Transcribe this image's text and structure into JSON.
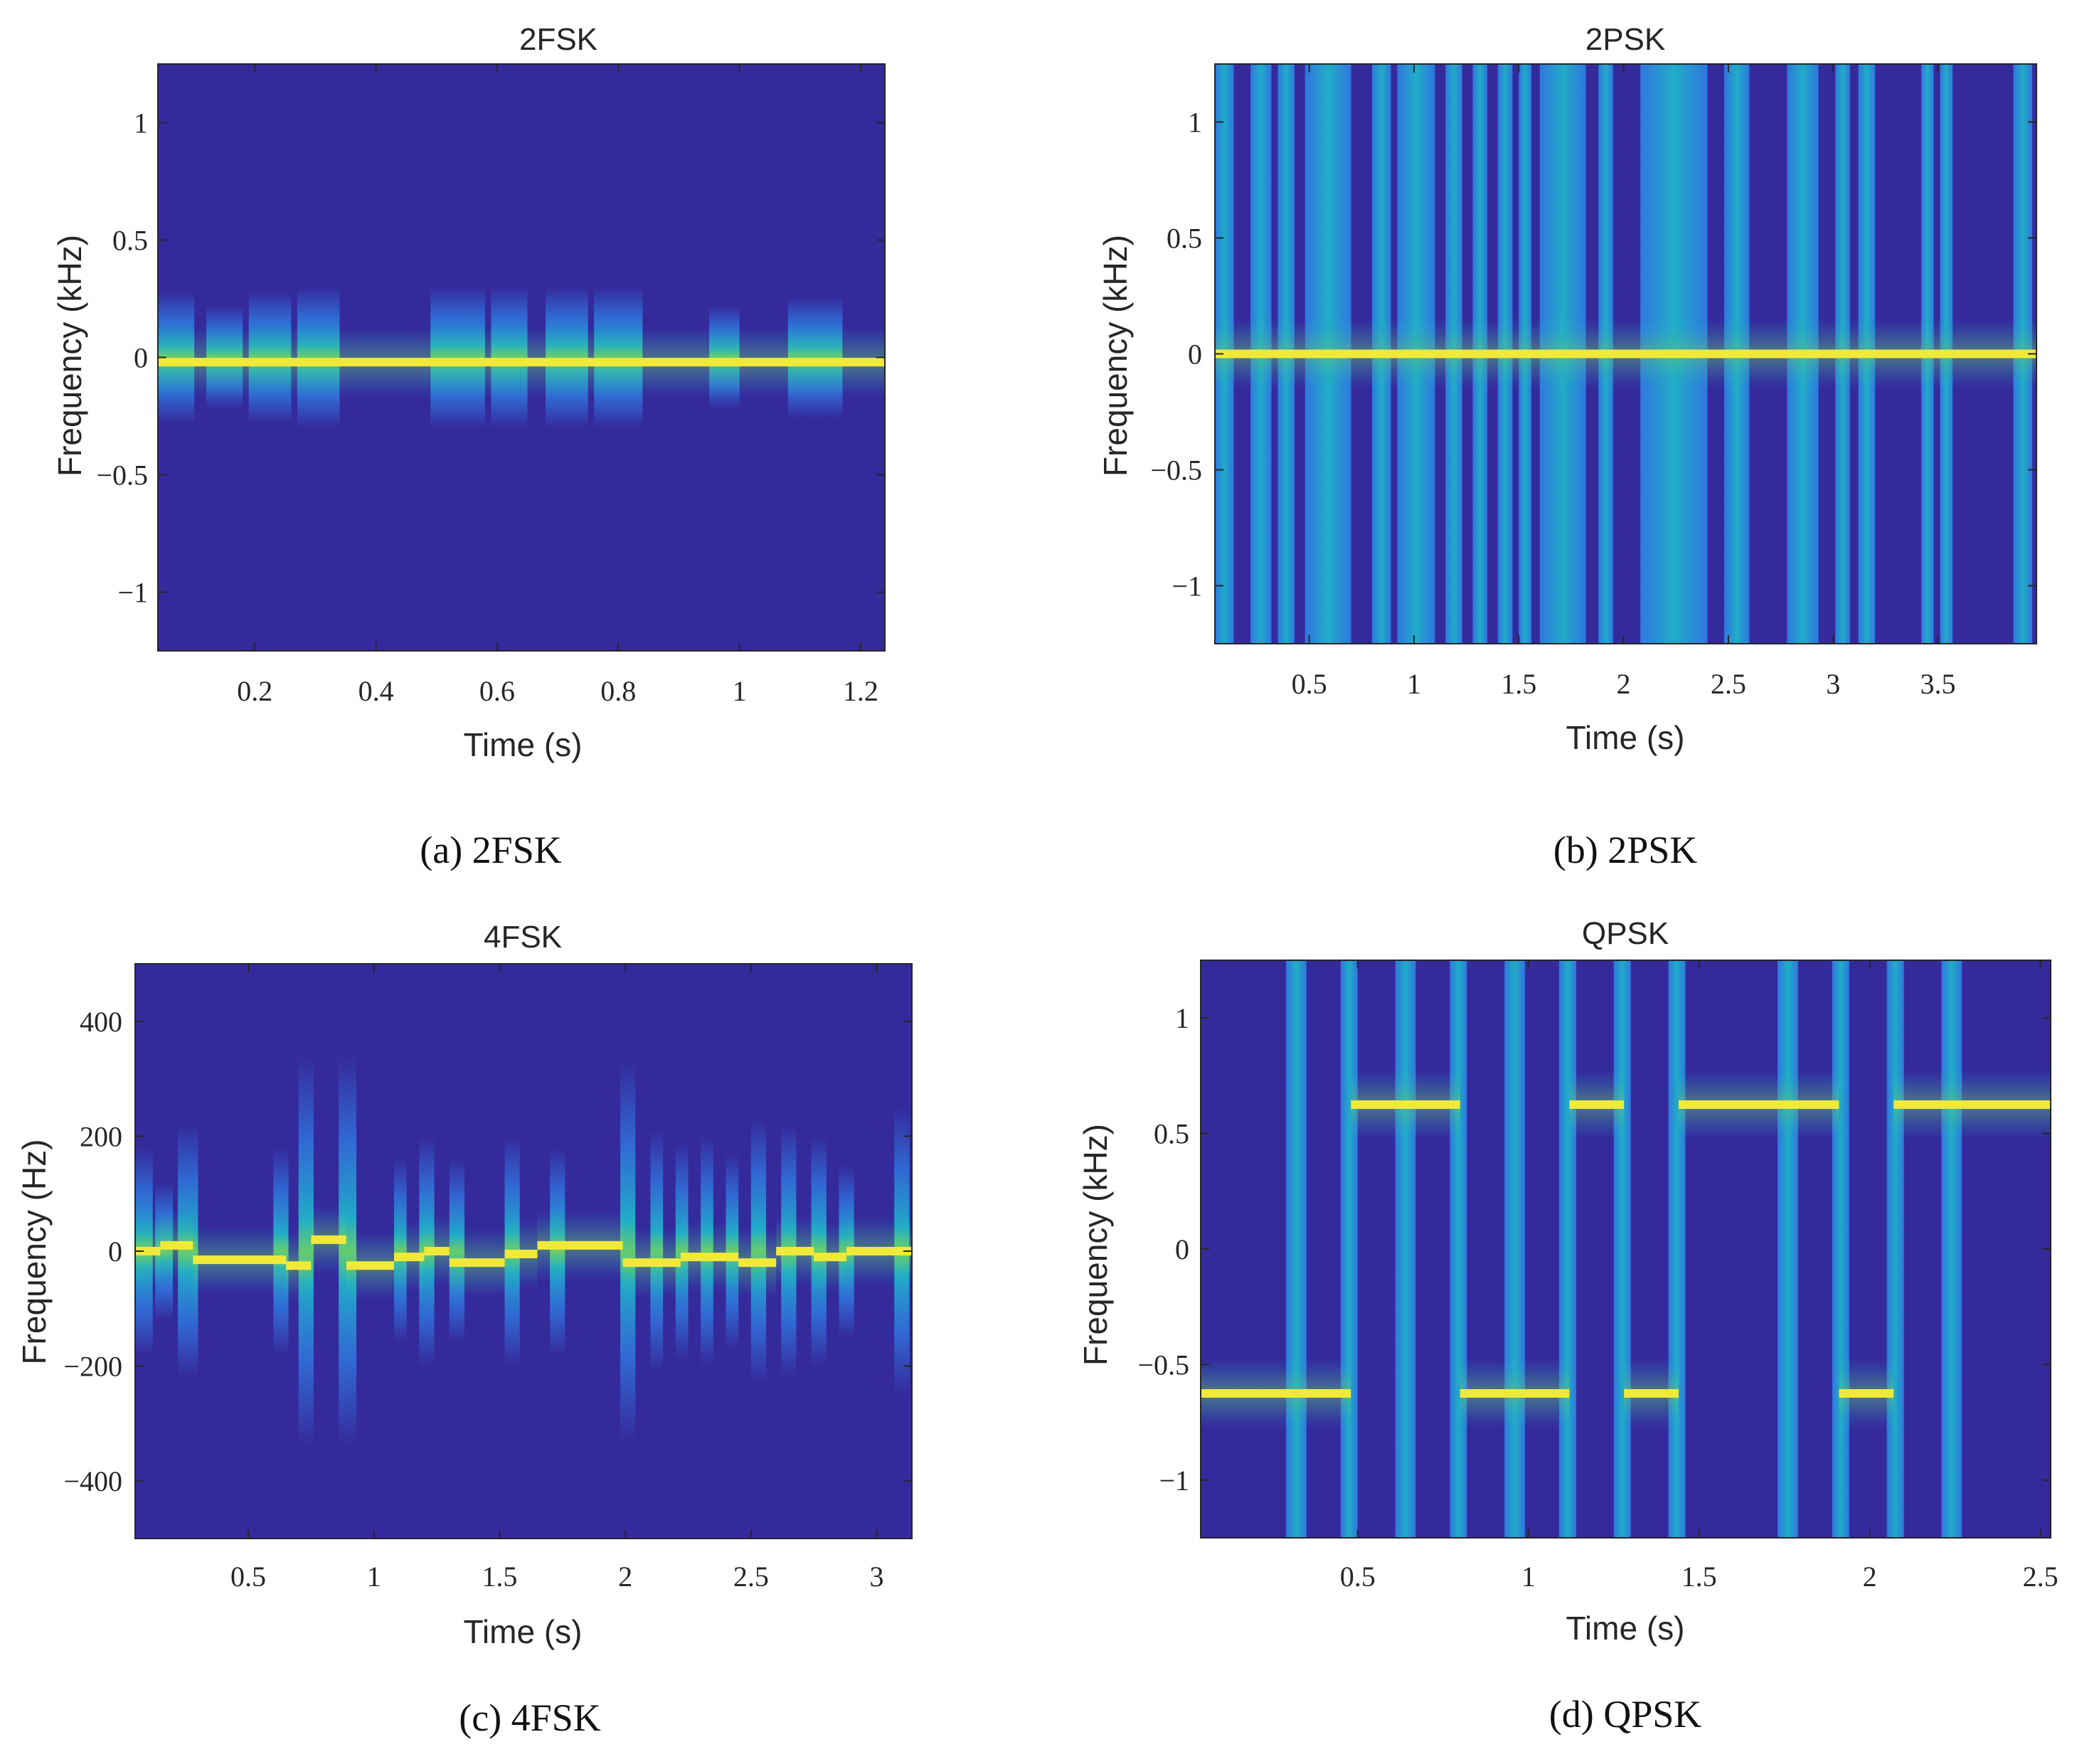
{
  "colors": {
    "background": "#352a9c",
    "energy_low": "#2f7fe6",
    "energy_mid": "#1fb4c9",
    "energy_high": "#6ecf63",
    "peak": "#f1e93a"
  },
  "chart_data": [
    {
      "id": "a",
      "type": "heatmap",
      "title": "2FSK",
      "caption": "(a)  2FSK",
      "xlabel": "Time (s)",
      "ylabel": "Frequency (kHz)",
      "xlim": [
        0.04,
        1.24
      ],
      "ylim": [
        -1.25,
        1.25
      ],
      "xticks": [
        0.2,
        0.4,
        0.6,
        0.8,
        1,
        1.2
      ],
      "xtick_labels": [
        "0.2",
        "0.4",
        "0.6",
        "0.8",
        "1",
        "1.2"
      ],
      "yticks": [
        1,
        0.5,
        0,
        -0.5,
        -1
      ],
      "ytick_labels": [
        "1",
        "0.5",
        "0",
        "−0.5",
        "−1"
      ],
      "bursts": [
        {
          "t0": 0.04,
          "t1": 0.1,
          "f": 0,
          "spread": 0.28
        },
        {
          "t0": 0.12,
          "t1": 0.18,
          "f": 0,
          "spread": 0.22
        },
        {
          "t0": 0.19,
          "t1": 0.26,
          "f": 0,
          "spread": 0.28
        },
        {
          "t0": 0.27,
          "t1": 0.34,
          "f": 0,
          "spread": 0.3
        },
        {
          "t0": 0.49,
          "t1": 0.58,
          "f": 0,
          "spread": 0.3
        },
        {
          "t0": 0.59,
          "t1": 0.65,
          "f": 0,
          "spread": 0.3
        },
        {
          "t0": 0.68,
          "t1": 0.75,
          "f": 0,
          "spread": 0.3
        },
        {
          "t0": 0.76,
          "t1": 0.84,
          "f": 0,
          "spread": 0.3
        },
        {
          "t0": 0.95,
          "t1": 1.0,
          "f": 0,
          "spread": 0.22
        },
        {
          "t0": 1.08,
          "t1": 1.17,
          "f": 0,
          "spread": 0.26
        }
      ],
      "ridge": [
        {
          "t0": 0.04,
          "t1": 1.24,
          "f": -0.02
        }
      ]
    },
    {
      "id": "b",
      "type": "heatmap",
      "title": "2PSK",
      "caption": "(b)  2PSK",
      "xlabel": "Time (s)",
      "ylabel": "Frequency (kHz)",
      "xlim": [
        0.05,
        3.97
      ],
      "ylim": [
        -1.25,
        1.25
      ],
      "xticks": [
        0.5,
        1,
        1.5,
        2,
        2.5,
        3,
        3.5
      ],
      "xtick_labels": [
        "0.5",
        "1",
        "1.5",
        "2",
        "2.5",
        "3",
        "3.5"
      ],
      "yticks": [
        1,
        0.5,
        0,
        -0.5,
        -1
      ],
      "ytick_labels": [
        "1",
        "0.5",
        "0",
        "−0.5",
        "−1"
      ],
      "bands": [
        {
          "t0": 0.05,
          "t1": 0.14
        },
        {
          "t0": 0.22,
          "t1": 0.32
        },
        {
          "t0": 0.35,
          "t1": 0.43
        },
        {
          "t0": 0.48,
          "t1": 0.7
        },
        {
          "t0": 0.8,
          "t1": 0.89
        },
        {
          "t0": 0.92,
          "t1": 1.1
        },
        {
          "t0": 1.15,
          "t1": 1.23
        },
        {
          "t0": 1.28,
          "t1": 1.35
        },
        {
          "t0": 1.4,
          "t1": 1.47
        },
        {
          "t0": 1.5,
          "t1": 1.56
        },
        {
          "t0": 1.6,
          "t1": 1.82
        },
        {
          "t0": 1.88,
          "t1": 1.95
        },
        {
          "t0": 2.08,
          "t1": 2.4
        },
        {
          "t0": 2.48,
          "t1": 2.6
        },
        {
          "t0": 2.78,
          "t1": 2.93
        },
        {
          "t0": 3.01,
          "t1": 3.08
        },
        {
          "t0": 3.12,
          "t1": 3.2
        },
        {
          "t0": 3.42,
          "t1": 3.48
        },
        {
          "t0": 3.51,
          "t1": 3.57
        },
        {
          "t0": 3.86,
          "t1": 3.95
        }
      ],
      "ridge": [
        {
          "t0": 0.05,
          "t1": 3.97,
          "f": 0
        }
      ]
    },
    {
      "id": "c",
      "type": "heatmap",
      "title": "4FSK",
      "caption": "(c)  4FSK",
      "xlabel": "Time (s)",
      "ylabel": "Frequency (Hz)",
      "xlim": [
        0.05,
        3.14
      ],
      "ylim": [
        -500,
        500
      ],
      "xticks": [
        0.5,
        1,
        1.5,
        2,
        2.5,
        3
      ],
      "xtick_labels": [
        "0.5",
        "1",
        "1.5",
        "2",
        "2.5",
        "3"
      ],
      "yticks": [
        400,
        200,
        0,
        -200,
        -400
      ],
      "ytick_labels": [
        "400",
        "200",
        "0",
        "−200",
        "−400"
      ],
      "bursts": [
        {
          "t0": 0.05,
          "t1": 0.12,
          "f": 0,
          "spread": 180
        },
        {
          "t0": 0.13,
          "t1": 0.2,
          "f": 0,
          "spread": 120
        },
        {
          "t0": 0.22,
          "t1": 0.3,
          "f": 0,
          "spread": 220
        },
        {
          "t0": 0.6,
          "t1": 0.66,
          "f": 0,
          "spread": 180
        },
        {
          "t0": 0.7,
          "t1": 0.76,
          "f": 0,
          "spread": 340
        },
        {
          "t0": 0.86,
          "t1": 0.93,
          "f": 0,
          "spread": 340
        },
        {
          "t0": 1.08,
          "t1": 1.13,
          "f": 0,
          "spread": 160
        },
        {
          "t0": 1.18,
          "t1": 1.24,
          "f": 0,
          "spread": 200
        },
        {
          "t0": 1.3,
          "t1": 1.36,
          "f": 0,
          "spread": 160
        },
        {
          "t0": 1.52,
          "t1": 1.58,
          "f": 0,
          "spread": 200
        },
        {
          "t0": 1.7,
          "t1": 1.76,
          "f": 0,
          "spread": 180
        },
        {
          "t0": 1.98,
          "t1": 2.04,
          "f": 0,
          "spread": 330
        },
        {
          "t0": 2.1,
          "t1": 2.15,
          "f": 0,
          "spread": 210
        },
        {
          "t0": 2.2,
          "t1": 2.25,
          "f": 0,
          "spread": 190
        },
        {
          "t0": 2.3,
          "t1": 2.35,
          "f": 0,
          "spread": 200
        },
        {
          "t0": 2.4,
          "t1": 2.45,
          "f": 0,
          "spread": 170
        },
        {
          "t0": 2.5,
          "t1": 2.56,
          "f": 0,
          "spread": 230
        },
        {
          "t0": 2.62,
          "t1": 2.68,
          "f": 0,
          "spread": 220
        },
        {
          "t0": 2.74,
          "t1": 2.8,
          "f": 0,
          "spread": 200
        },
        {
          "t0": 2.85,
          "t1": 2.91,
          "f": 0,
          "spread": 150
        },
        {
          "t0": 3.07,
          "t1": 3.13,
          "f": 0,
          "spread": 250
        }
      ],
      "ridge": [
        {
          "t0": 0.05,
          "t1": 0.15,
          "f": 0
        },
        {
          "t0": 0.15,
          "t1": 0.28,
          "f": 10
        },
        {
          "t0": 0.28,
          "t1": 0.65,
          "f": -15
        },
        {
          "t0": 0.65,
          "t1": 0.75,
          "f": -25
        },
        {
          "t0": 0.75,
          "t1": 0.89,
          "f": 20
        },
        {
          "t0": 0.89,
          "t1": 1.08,
          "f": -25
        },
        {
          "t0": 1.08,
          "t1": 1.2,
          "f": -10
        },
        {
          "t0": 1.2,
          "t1": 1.3,
          "f": 0
        },
        {
          "t0": 1.3,
          "t1": 1.52,
          "f": -20
        },
        {
          "t0": 1.52,
          "t1": 1.65,
          "f": -5
        },
        {
          "t0": 1.65,
          "t1": 1.99,
          "f": 10
        },
        {
          "t0": 1.99,
          "t1": 2.22,
          "f": -20
        },
        {
          "t0": 2.22,
          "t1": 2.45,
          "f": -10
        },
        {
          "t0": 2.45,
          "t1": 2.6,
          "f": -20
        },
        {
          "t0": 2.6,
          "t1": 2.75,
          "f": 0
        },
        {
          "t0": 2.75,
          "t1": 2.88,
          "f": -10
        },
        {
          "t0": 2.88,
          "t1": 3.14,
          "f": 0
        }
      ]
    },
    {
      "id": "d",
      "type": "heatmap",
      "title": "QPSK",
      "caption": "(d)  QPSK",
      "xlabel": "Time (s)",
      "ylabel": "Frequency (kHz)",
      "xlim": [
        0.04,
        2.53
      ],
      "ylim": [
        -1.25,
        1.25
      ],
      "xticks": [
        0.5,
        1,
        1.5,
        2,
        2.5
      ],
      "xtick_labels": [
        "0.5",
        "1",
        "1.5",
        "2",
        "2.5"
      ],
      "yticks": [
        1,
        0.5,
        0,
        -0.5,
        -1
      ],
      "ytick_labels": [
        "1",
        "0.5",
        "0",
        "−0.5",
        "−1"
      ],
      "bands": [
        {
          "t0": 0.29,
          "t1": 0.35
        },
        {
          "t0": 0.45,
          "t1": 0.5
        },
        {
          "t0": 0.61,
          "t1": 0.67
        },
        {
          "t0": 0.77,
          "t1": 0.82
        },
        {
          "t0": 0.93,
          "t1": 0.99
        },
        {
          "t0": 1.09,
          "t1": 1.14
        },
        {
          "t0": 1.25,
          "t1": 1.3
        },
        {
          "t0": 1.41,
          "t1": 1.46
        },
        {
          "t0": 1.73,
          "t1": 1.79
        },
        {
          "t0": 1.89,
          "t1": 1.94
        },
        {
          "t0": 2.05,
          "t1": 2.1
        },
        {
          "t0": 2.21,
          "t1": 2.27
        }
      ],
      "ridge": [
        {
          "t0": 0.04,
          "t1": 0.48,
          "f": -0.625
        },
        {
          "t0": 0.48,
          "t1": 0.8,
          "f": 0.625
        },
        {
          "t0": 0.8,
          "t1": 1.12,
          "f": -0.625
        },
        {
          "t0": 1.12,
          "t1": 1.28,
          "f": 0.625
        },
        {
          "t0": 1.28,
          "t1": 1.44,
          "f": -0.625
        },
        {
          "t0": 1.44,
          "t1": 1.91,
          "f": 0.625
        },
        {
          "t0": 1.91,
          "t1": 2.07,
          "f": -0.625
        },
        {
          "t0": 2.07,
          "t1": 2.53,
          "f": 0.625
        }
      ]
    }
  ]
}
